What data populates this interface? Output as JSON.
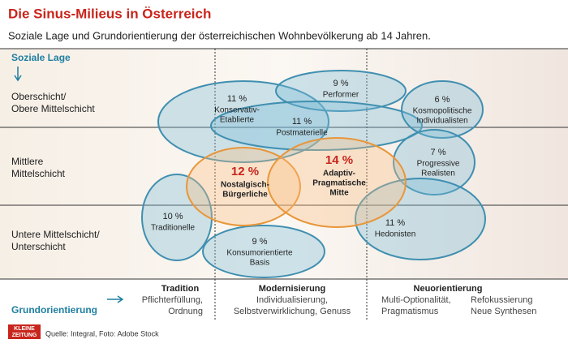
{
  "header": {
    "title": "Die Sinus-Milieus in Österreich",
    "subtitle": "Soziale Lage und Grundorientierung der österreichischen Wohnbevölkerung ab 14 Jahren."
  },
  "y_axis": {
    "title": "Soziale Lage",
    "rows": [
      [
        "Oberschicht/",
        "Obere Mittelschicht"
      ],
      [
        "Mittlere",
        "Mittelschicht"
      ],
      [
        "Untere Mittelschicht/",
        "Unterschicht"
      ]
    ]
  },
  "x_axis": {
    "title": "Grundorientierung",
    "columns": [
      {
        "heading": "Tradition",
        "items": [
          "Pflichterfüllung,",
          "Ordnung"
        ]
      },
      {
        "heading": "Modernisierung",
        "items": [
          "Individualisierung,",
          "Selbstverwirklichung, Genuss"
        ]
      },
      {
        "heading": "Neuorientierung",
        "items": [
          "Multi-Optionalität,",
          "Pragmatismus",
          "Refokussierung",
          "Neue Synthesen"
        ]
      }
    ]
  },
  "milieus": [
    {
      "share": "9 %",
      "name": [
        "Performer"
      ]
    },
    {
      "share": "11 %",
      "name": [
        "Konservativ-",
        "Etablierte"
      ]
    },
    {
      "share": "11 %",
      "name": [
        "Postmaterielle"
      ]
    },
    {
      "share": "6 %",
      "name": [
        "Kosmopolitische",
        "Individualisten"
      ]
    },
    {
      "share": "7 %",
      "name": [
        "Progressive",
        "Realisten"
      ]
    },
    {
      "share": "12 %",
      "name": [
        "Nostalgisch-",
        "Bürgerliche"
      ]
    },
    {
      "share": "14 %",
      "name": [
        "Adaptiv-",
        "Pragmatische",
        "Mitte"
      ]
    },
    {
      "share": "10 %",
      "name": [
        "Traditionelle"
      ]
    },
    {
      "share": "9 %",
      "name": [
        "Konsumorientierte",
        "Basis"
      ]
    },
    {
      "share": "11 %",
      "name": [
        "Hedonisten"
      ]
    }
  ],
  "footer": {
    "logo": [
      "KLEINE",
      "ZEITUNG"
    ],
    "source": "Quelle: Integral, Foto: Adobe Stock"
  }
}
